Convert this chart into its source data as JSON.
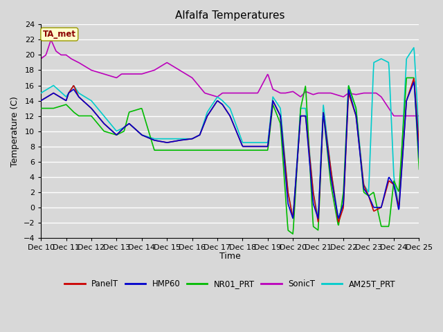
{
  "title": "Alfalfa Temperatures",
  "ylabel": "Temperature (C)",
  "xlabel": "Time",
  "annotation": "TA_met",
  "ylim": [
    -4,
    24
  ],
  "yticks": [
    -4,
    -2,
    0,
    2,
    4,
    6,
    8,
    10,
    12,
    14,
    16,
    18,
    20,
    22,
    24
  ],
  "xtick_labels": [
    "Dec 10",
    "Dec 11",
    "Dec 12",
    "Dec 13",
    "Dec 14",
    "Dec 15",
    "Dec 16",
    "Dec 17",
    "Dec 18",
    "Dec 19",
    "Dec 20",
    "Dec 21",
    "Dec 22",
    "Dec 23",
    "Dec 24",
    "Dec 25"
  ],
  "colors": {
    "PanelT": "#cc0000",
    "HMP60": "#0000cc",
    "NR01_PRT": "#00bb00",
    "SonicT": "#bb00bb",
    "AM25T_PRT": "#00cccc"
  },
  "bg_color": "#d8d8d8",
  "plot_bg": "#d8d8d8",
  "grid_color": "#ffffff"
}
